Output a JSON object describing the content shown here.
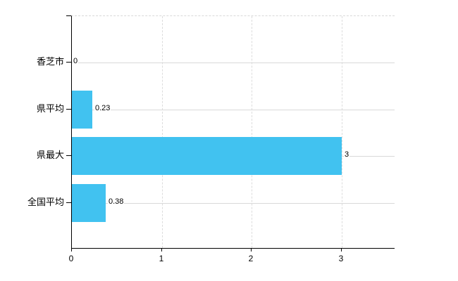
{
  "chart_data": {
    "type": "bar",
    "orientation": "horizontal",
    "title": "",
    "xlabel": "",
    "ylabel": "",
    "categories": [
      "香芝市",
      "県平均",
      "県最大",
      "全国平均"
    ],
    "values": [
      0,
      0.23,
      3,
      0.38
    ],
    "value_labels": [
      "0",
      "0.23",
      "3",
      "0.38"
    ],
    "x_ticks": [
      0,
      1,
      2,
      3
    ],
    "x_tick_labels": [
      "0",
      "1",
      "2",
      "3"
    ],
    "xlim": [
      0,
      3.6
    ],
    "grid": true,
    "legend": false,
    "colors": {
      "bar": "#41c2f0",
      "hgrid": "#d9d9d9",
      "vgrid": "#dcdcdc",
      "axis": "#000000",
      "text": "#000000",
      "background": "#ffffff"
    }
  }
}
